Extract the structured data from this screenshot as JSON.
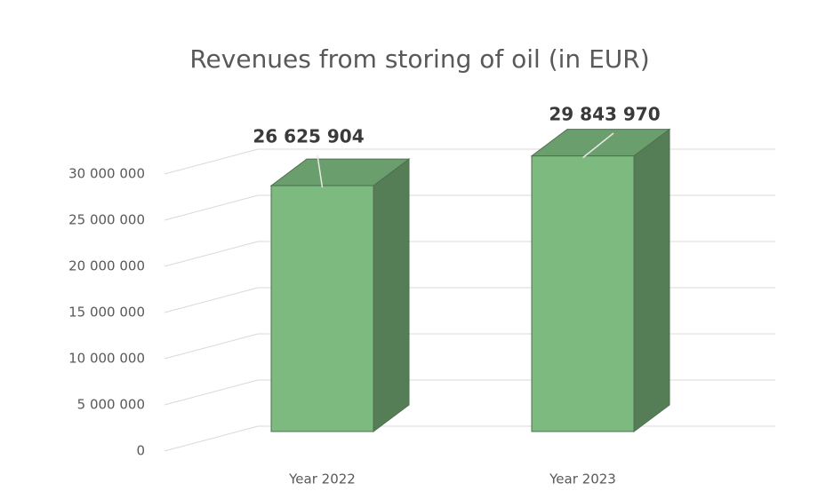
{
  "chart_data": {
    "type": "bar3d",
    "title": "Revenues from storing of oil (in EUR)",
    "categories": [
      "Year 2022",
      "Year 2023"
    ],
    "values": [
      26625904,
      29843970
    ],
    "value_labels": [
      "26 625 904",
      "29 843 970"
    ],
    "color": "#7dba7f",
    "ylim": [
      0,
      30000000
    ],
    "yticks": [
      0,
      {
        "value": 5000000,
        "label": "5 000 000"
      },
      {
        "value": 10000000,
        "label": "10 000 000"
      },
      {
        "value": 15000000,
        "label": "15 000 000"
      },
      {
        "value": 20000000,
        "label": "20 000 000"
      },
      {
        "value": 25000000,
        "label": "25 000 000"
      },
      {
        "value": 30000000,
        "label": "30 000 000"
      }
    ],
    "grid": true
  }
}
